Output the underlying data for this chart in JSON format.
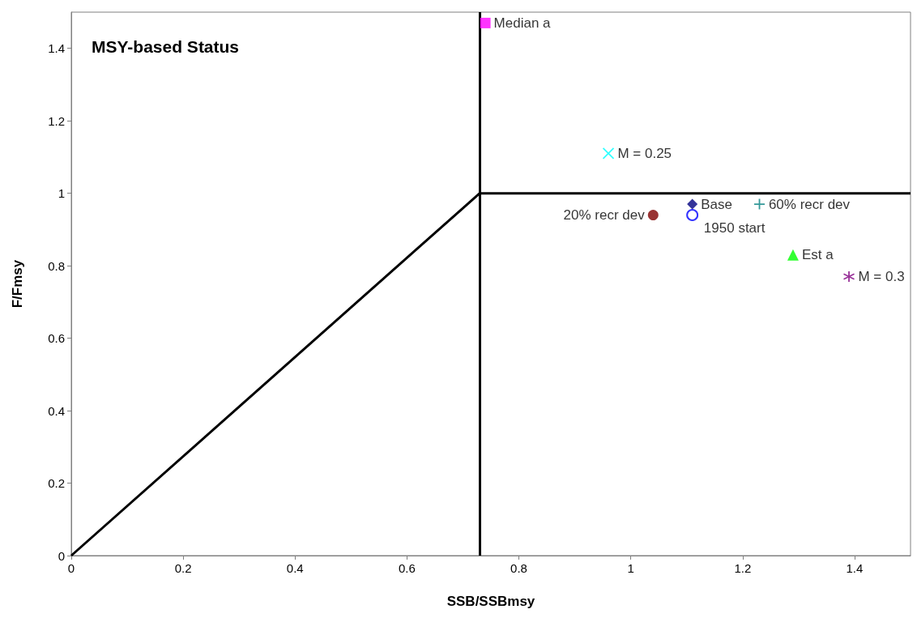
{
  "chart_data": {
    "type": "scatter",
    "title": "MSY-based Status",
    "xlabel": "SSB/SSBmsy",
    "ylabel": "F/Fmsy",
    "xlim": [
      0,
      1.5
    ],
    "ylim": [
      0,
      1.5
    ],
    "xticks": [
      0,
      0.2,
      0.4,
      0.6,
      0.8,
      1,
      1.2,
      1.4
    ],
    "yticks": [
      0,
      0.2,
      0.4,
      0.6,
      0.8,
      1,
      1.2,
      1.4
    ],
    "grid": false,
    "legend": false,
    "ref_lines": [
      {
        "axis": "x",
        "value": 0.73,
        "color": "#000000"
      }
    ],
    "series": [
      {
        "type": "line",
        "color": "#000000",
        "marker": "none",
        "x": [
          0,
          0.73,
          1.5
        ],
        "values": [
          0,
          1,
          1
        ]
      },
      {
        "name": "Median a",
        "color": "#ff00ff",
        "marker": "square",
        "x": [
          0.74
        ],
        "values": [
          1.47
        ]
      },
      {
        "name": "M = 0.25",
        "color": "#00ffff",
        "marker": "x",
        "x": [
          0.96
        ],
        "values": [
          1.11
        ]
      },
      {
        "name": "Base",
        "color": "#000080",
        "marker": "diamond",
        "x": [
          1.11
        ],
        "values": [
          0.97
        ]
      },
      {
        "name": "1950 start",
        "color": "#0000ff",
        "marker": "circle-open",
        "x": [
          1.11
        ],
        "values": [
          0.94
        ]
      },
      {
        "name": "60% recr dev",
        "color": "#008080",
        "marker": "plus",
        "x": [
          1.23
        ],
        "values": [
          0.97
        ]
      },
      {
        "name": "20% recr dev",
        "color": "#800000",
        "marker": "circle",
        "x": [
          1.04
        ],
        "values": [
          0.94
        ]
      },
      {
        "name": "Est a",
        "color": "#00ff00",
        "marker": "triangle",
        "x": [
          1.29
        ],
        "values": [
          0.83
        ]
      },
      {
        "name": "M = 0.3",
        "color": "#800080",
        "marker": "cross",
        "x": [
          1.39
        ],
        "values": [
          0.77
        ]
      }
    ]
  }
}
